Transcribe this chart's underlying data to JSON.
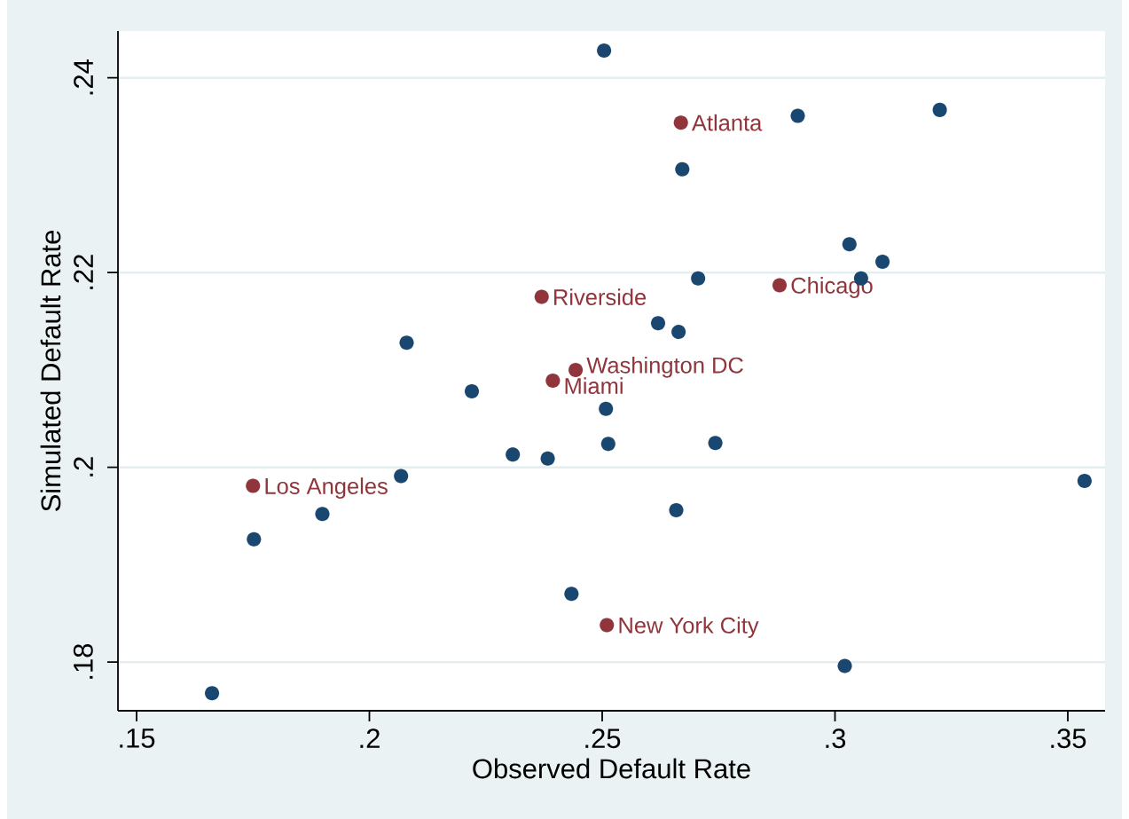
{
  "chart_data": {
    "type": "scatter",
    "xlabel": "Observed Default Rate",
    "ylabel": "Simulated Default Rate",
    "xlim": [
      0.146,
      0.358
    ],
    "ylim": [
      0.175,
      0.2448
    ],
    "xticks": [
      {
        "value": 0.15,
        "label": ".15"
      },
      {
        "value": 0.2,
        "label": ".2"
      },
      {
        "value": 0.25,
        "label": ".25"
      },
      {
        "value": 0.3,
        "label": ".3"
      },
      {
        "value": 0.35,
        "label": ".35"
      }
    ],
    "yticks": [
      {
        "value": 0.18,
        "label": ".18"
      },
      {
        "value": 0.2,
        "label": ".2"
      },
      {
        "value": 0.22,
        "label": ".22"
      },
      {
        "value": 0.24,
        "label": ".24"
      }
    ],
    "grid": "y",
    "series": [
      {
        "color": "#1a476f",
        "x": [
          0.2504,
          0.292,
          0.3225,
          0.2672,
          0.3031,
          0.3102,
          0.3056,
          0.2706,
          0.262,
          0.2664,
          0.208,
          0.222,
          0.2508,
          0.2513,
          0.2743,
          0.2308,
          0.2383,
          0.2068,
          0.3536,
          0.1899,
          0.2659,
          0.1752,
          0.2434,
          0.3021,
          0.1662
        ],
        "values": [
          0.2428,
          0.2361,
          0.2367,
          0.2306,
          0.2229,
          0.2211,
          0.2194,
          0.2194,
          0.2148,
          0.2139,
          0.2128,
          0.2078,
          0.206,
          0.2024,
          0.2025,
          0.2013,
          0.2009,
          0.1991,
          0.1986,
          0.1952,
          0.1956,
          0.1926,
          0.187,
          0.1796,
          0.1768
        ]
      },
      {
        "color": "#90353b",
        "x": [
          0.2669,
          0.2881,
          0.237,
          0.2443,
          0.2394,
          0.175,
          0.251
        ],
        "values": [
          0.2354,
          0.2187,
          0.2175,
          0.21,
          0.2089,
          0.1981,
          0.1838
        ],
        "value_labels": [
          "Atlanta",
          "Chicago",
          "Riverside",
          "Washington DC",
          "Miami",
          "Los Angeles",
          "New York City"
        ]
      }
    ]
  }
}
